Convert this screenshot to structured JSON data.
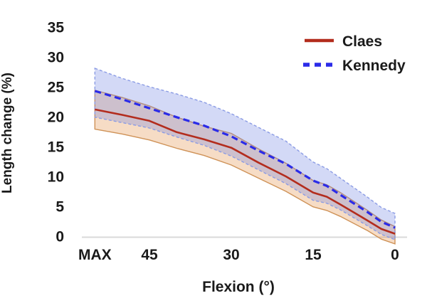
{
  "chart_data": {
    "type": "line",
    "title": "",
    "xlabel": "Flexion (°)",
    "ylabel": "Length change (%)",
    "x_axis": {
      "tick_labels": [
        "MAX",
        "45",
        "30",
        "15",
        "0"
      ],
      "tick_values": [
        55,
        45,
        30,
        15,
        0
      ],
      "direction": "decreasing-right",
      "max_label_meaning": "maximum flexion"
    },
    "y_axis": {
      "ticks": [
        35,
        30,
        25,
        20,
        15,
        10,
        5,
        0
      ],
      "range": [
        0,
        35
      ],
      "grid": false,
      "baseline_color": "#d9d9d9"
    },
    "x_degrees": [
      55,
      50,
      45,
      40,
      35,
      30,
      25,
      20,
      15,
      12.5,
      10,
      5,
      2.5,
      0
    ],
    "series": [
      {
        "name": "Claes",
        "style": "solid",
        "line_color": "#b32c1d",
        "band_fill": "rgba(224,138,62,0.30)",
        "band_edge": "#cf9257",
        "mean": [
          21.2,
          20.3,
          19.3,
          17.4,
          16.2,
          14.8,
          12.3,
          10.0,
          7.3,
          6.6,
          5.3,
          2.6,
          1.2,
          0.4
        ],
        "upper": [
          24.4,
          23.2,
          21.8,
          19.9,
          18.4,
          17.2,
          14.6,
          12.2,
          9.3,
          8.6,
          7.3,
          4.3,
          2.7,
          1.6
        ],
        "lower": [
          17.9,
          17.1,
          16.1,
          14.7,
          13.5,
          11.9,
          9.7,
          7.5,
          4.9,
          4.3,
          3.3,
          0.9,
          -0.5,
          -1.3
        ]
      },
      {
        "name": "Kennedy",
        "style": "dashed",
        "line_color": "#2b2be8",
        "band_fill": "rgba(108,128,226,0.30)",
        "band_edge": "#8a9be4",
        "mean": [
          24.3,
          22.9,
          21.4,
          19.9,
          18.5,
          16.7,
          14.3,
          12.1,
          9.3,
          8.4,
          6.9,
          4.0,
          2.4,
          1.4
        ],
        "upper": [
          28.1,
          26.4,
          25.0,
          23.8,
          22.4,
          20.5,
          18.2,
          15.9,
          12.4,
          11.3,
          9.7,
          6.5,
          4.8,
          3.8
        ],
        "lower": [
          19.9,
          19.0,
          18.1,
          16.6,
          15.2,
          13.4,
          11.1,
          8.8,
          6.0,
          5.5,
          4.4,
          1.7,
          0.3,
          -0.6
        ]
      }
    ],
    "legend": {
      "position": "top-right",
      "entries": [
        "Claes",
        "Kennedy"
      ]
    }
  }
}
